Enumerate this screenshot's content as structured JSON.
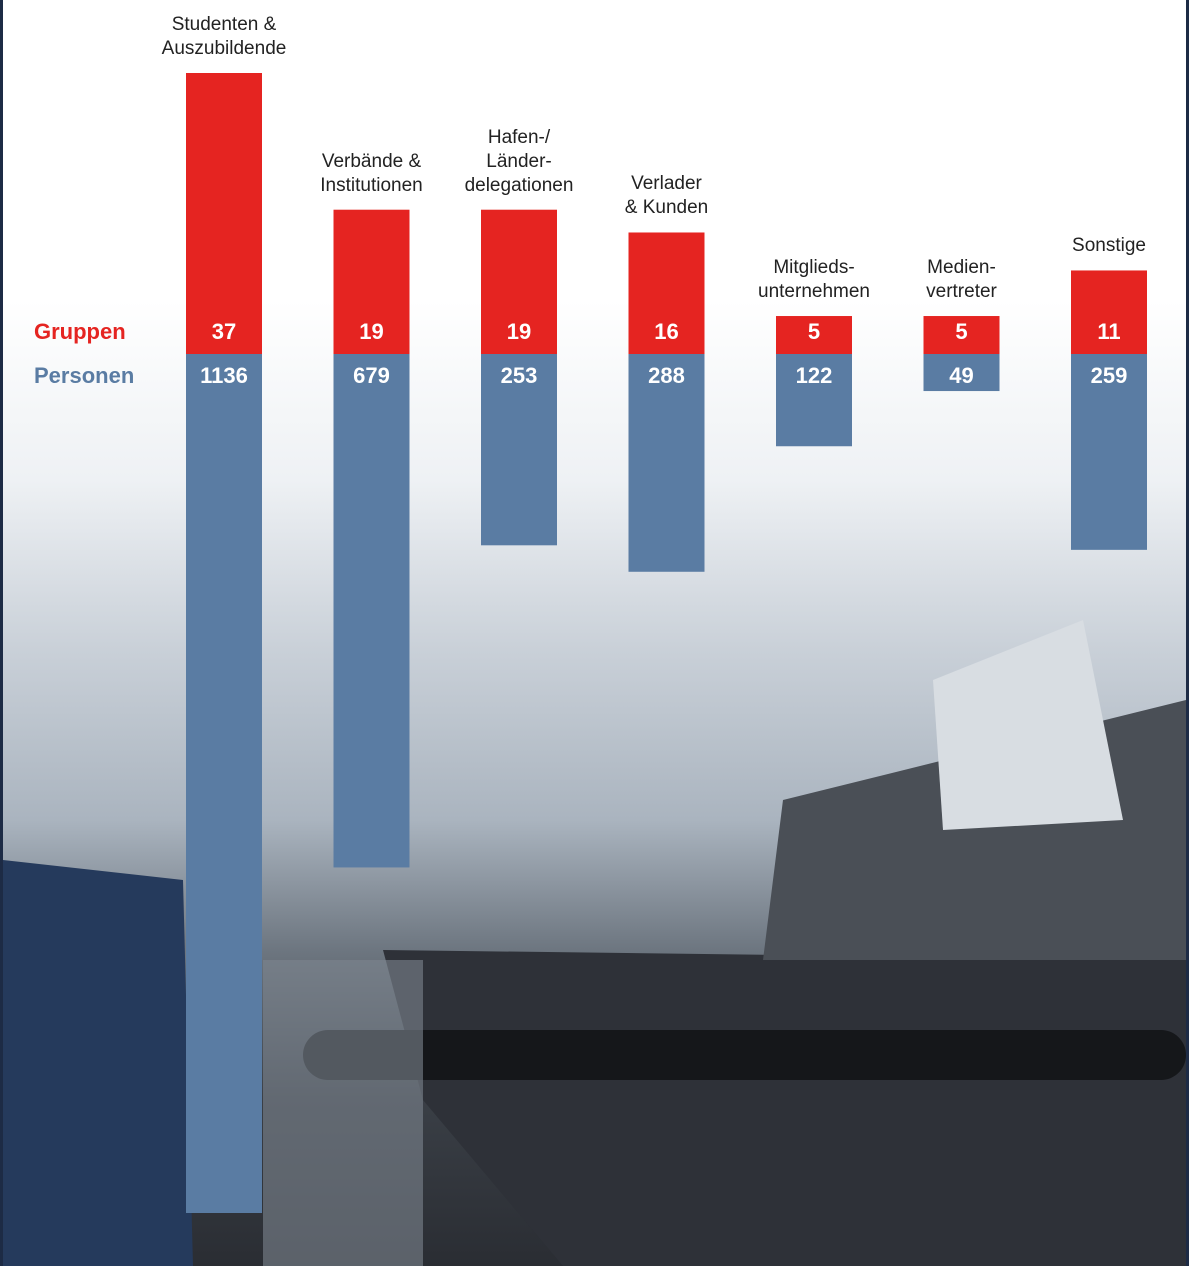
{
  "chart_data": {
    "type": "diverging-bar",
    "categories": [
      "Studenten &\nAuszubildende",
      "Verbände &\nInstitutionen",
      "Hafen-/\nLänder-\ndelegationen",
      "Verlader\n& Kunden",
      "Mitglieds-\nunternehmen",
      "Medien-\nvertreter",
      "Sonstige"
    ],
    "series": [
      {
        "name": "Gruppen",
        "color": "#e52421",
        "values": [
          37,
          19,
          19,
          16,
          5,
          5,
          11
        ]
      },
      {
        "name": "Personen",
        "color": "#5a7ca3",
        "values": [
          1136,
          679,
          253,
          288,
          122,
          49,
          259
        ]
      }
    ]
  }
}
